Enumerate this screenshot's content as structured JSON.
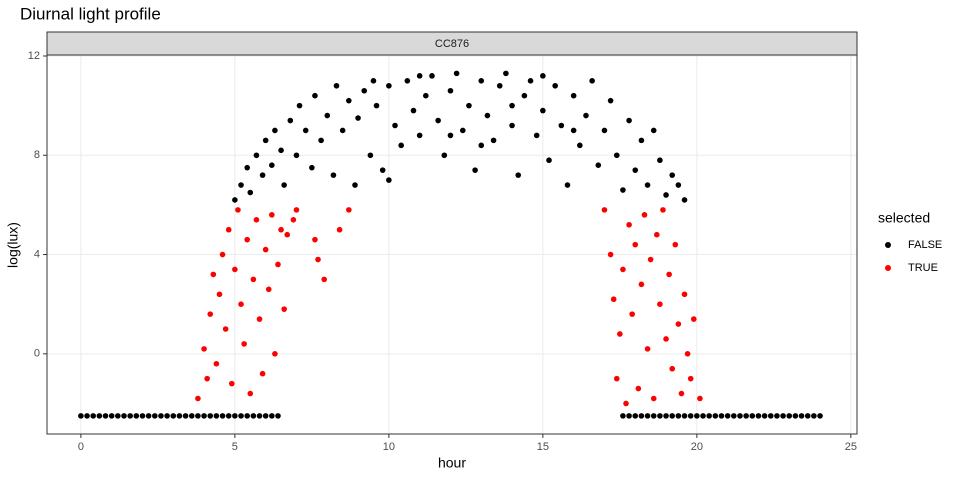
{
  "chart_data": {
    "type": "scatter",
    "title": "Diurnal light profile",
    "facet": "CC876",
    "x_label": "hour",
    "y_label": "log(lux)",
    "legend_title": "selected",
    "legend_position": "right",
    "grid": true,
    "xlim": [
      -1.1,
      25.2
    ],
    "ylim": [
      -3.23,
      12.04
    ],
    "xticks": [
      0,
      5,
      10,
      15,
      20,
      25
    ],
    "yticks": [
      0,
      4,
      8,
      12
    ],
    "series": [
      {
        "name": "FALSE",
        "color": "#000000",
        "x": [
          5.0,
          5.2,
          5.4,
          5.5,
          5.7,
          5.9,
          6.0,
          6.2,
          6.3,
          6.5,
          6.6,
          6.8,
          7.0,
          7.1,
          7.3,
          7.5,
          7.6,
          7.8,
          8.0,
          8.2,
          8.3,
          8.5,
          8.7,
          8.9,
          9.0,
          9.2,
          9.4,
          9.6,
          9.8,
          10.0,
          10.2,
          10.4,
          10.6,
          10.8,
          11.0,
          11.2,
          11.4,
          11.6,
          11.8,
          12.0,
          12.2,
          12.4,
          12.6,
          12.8,
          13.0,
          13.2,
          13.4,
          13.6,
          13.8,
          14.0,
          14.2,
          14.4,
          14.6,
          14.8,
          15.0,
          15.2,
          15.4,
          15.6,
          15.8,
          16.0,
          16.2,
          16.4,
          16.6,
          16.8,
          17.0,
          17.2,
          17.4,
          17.6,
          17.8,
          18.0,
          18.2,
          18.4,
          18.6,
          18.8,
          19.0,
          19.2,
          19.4,
          19.6,
          9.5,
          11.0,
          13.0,
          15.0,
          12.0,
          10.0,
          14.0,
          16.0,
          0,
          0.2,
          0.4,
          0.6,
          0.8,
          1.0,
          1.2,
          1.4,
          1.6,
          1.8,
          2.0,
          2.2,
          2.4,
          2.6,
          2.8,
          3.0,
          3.2,
          3.4,
          3.6,
          3.8,
          4.0,
          4.2,
          4.4,
          4.6,
          4.8,
          5.0,
          5.2,
          5.4,
          5.6,
          5.8,
          6.0,
          6.2,
          6.4,
          17.6,
          17.8,
          18.0,
          18.2,
          18.4,
          18.6,
          18.8,
          19.0,
          19.2,
          19.4,
          19.6,
          19.8,
          20.0,
          20.2,
          20.4,
          20.6,
          20.8,
          21.0,
          21.2,
          21.4,
          21.6,
          21.8,
          22.0,
          22.2,
          22.4,
          22.6,
          22.8,
          23.0,
          23.2,
          23.4,
          23.6,
          23.8,
          24.0
        ],
        "y": [
          6.2,
          6.8,
          7.5,
          6.5,
          8.0,
          7.2,
          8.6,
          7.6,
          9.0,
          8.2,
          6.8,
          9.4,
          8.0,
          10.0,
          9.0,
          7.5,
          10.4,
          8.6,
          9.6,
          7.2,
          10.8,
          9.0,
          10.2,
          6.8,
          9.5,
          10.6,
          8.0,
          10.0,
          7.4,
          10.8,
          9.2,
          8.4,
          11.0,
          9.8,
          8.8,
          10.4,
          11.2,
          9.4,
          8.0,
          10.6,
          11.3,
          9.0,
          10.0,
          7.4,
          11.0,
          9.6,
          8.6,
          10.8,
          11.3,
          9.2,
          7.2,
          10.4,
          11.0,
          8.8,
          9.8,
          7.8,
          10.8,
          9.2,
          6.8,
          10.4,
          8.4,
          9.6,
          11.0,
          7.6,
          9.0,
          10.2,
          8.0,
          6.6,
          9.4,
          7.4,
          8.6,
          6.8,
          9.0,
          7.8,
          6.4,
          7.2,
          6.8,
          6.2,
          11.0,
          11.2,
          8.4,
          11.2,
          8.8,
          7.0,
          10.0,
          9.0,
          -2.5,
          -2.5,
          -2.5,
          -2.5,
          -2.5,
          -2.5,
          -2.5,
          -2.5,
          -2.5,
          -2.5,
          -2.5,
          -2.5,
          -2.5,
          -2.5,
          -2.5,
          -2.5,
          -2.5,
          -2.5,
          -2.5,
          -2.5,
          -2.5,
          -2.5,
          -2.5,
          -2.5,
          -2.5,
          -2.5,
          -2.5,
          -2.5,
          -2.5,
          -2.5,
          -2.5,
          -2.5,
          -2.5,
          -2.5,
          -2.5,
          -2.5,
          -2.5,
          -2.5,
          -2.5,
          -2.5,
          -2.5,
          -2.5,
          -2.5,
          -2.5,
          -2.5,
          -2.5,
          -2.5,
          -2.5,
          -2.5,
          -2.5,
          -2.5,
          -2.5,
          -2.5,
          -2.5,
          -2.5,
          -2.5,
          -2.5,
          -2.5,
          -2.5,
          -2.5,
          -2.5,
          -2.5,
          -2.5,
          -2.5,
          -2.5,
          -2.5
        ]
      },
      {
        "name": "TRUE",
        "color": "#ff0000",
        "x": [
          3.8,
          4.0,
          4.1,
          4.2,
          4.3,
          4.4,
          4.5,
          4.6,
          4.7,
          4.8,
          4.9,
          5.0,
          5.1,
          5.2,
          5.3,
          5.4,
          5.5,
          5.6,
          5.7,
          5.8,
          5.9,
          6.0,
          6.1,
          6.2,
          6.3,
          6.4,
          6.5,
          6.6,
          6.7,
          6.9,
          7.0,
          7.6,
          7.7,
          7.9,
          8.4,
          8.7,
          17.0,
          17.2,
          17.3,
          17.4,
          17.5,
          17.6,
          17.7,
          17.8,
          17.9,
          18.0,
          18.1,
          18.2,
          18.3,
          18.4,
          18.5,
          18.6,
          18.7,
          18.8,
          18.9,
          19.0,
          19.1,
          19.2,
          19.3,
          19.4,
          19.5,
          19.6,
          19.7,
          19.8,
          19.9,
          20.1
        ],
        "y": [
          -1.8,
          0.2,
          -1.0,
          1.6,
          3.2,
          -0.4,
          2.4,
          4.0,
          1.0,
          5.0,
          -1.2,
          3.4,
          5.8,
          2.0,
          0.4,
          4.6,
          -1.6,
          3.0,
          5.4,
          1.4,
          -0.8,
          4.2,
          2.6,
          5.6,
          0.0,
          3.6,
          5.0,
          1.8,
          4.8,
          5.4,
          5.8,
          4.6,
          3.8,
          3.0,
          5.0,
          5.8,
          5.8,
          4.0,
          2.2,
          -1.0,
          0.8,
          3.4,
          -2.0,
          5.2,
          1.6,
          4.4,
          -1.4,
          2.8,
          5.6,
          0.2,
          3.8,
          -1.8,
          4.8,
          2.0,
          5.8,
          0.6,
          3.2,
          -0.6,
          4.4,
          1.2,
          -1.6,
          2.4,
          0.0,
          -1.0,
          1.4,
          -1.8
        ]
      }
    ]
  }
}
